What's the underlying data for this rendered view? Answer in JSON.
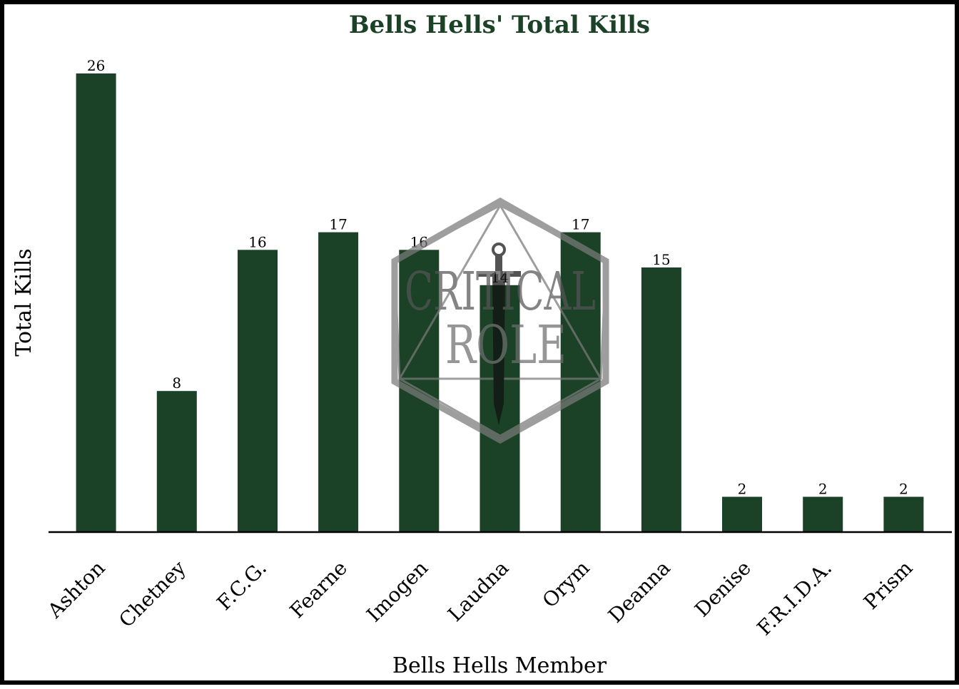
{
  "chart_data": {
    "type": "bar",
    "title": "Bells Hells' Total Kills",
    "xlabel": "Bells Hells Member",
    "ylabel": "Total Kills",
    "categories": [
      "Ashton",
      "Chetney",
      "F.C.G.",
      "Fearne",
      "Imogen",
      "Laudna",
      "Orym",
      "Deanna",
      "Denise",
      "F.R.I.D.A.",
      "Prism"
    ],
    "values": [
      26,
      8,
      16,
      17,
      16,
      14,
      17,
      15,
      2,
      2,
      2
    ],
    "ylim": [
      0,
      26
    ],
    "grid": false,
    "data_labels": true,
    "legend": "none",
    "colors": {
      "bar": "#1b4226",
      "title": "#1b4226",
      "text": "#000000",
      "watermark": "#7a7a7a"
    },
    "watermark": {
      "line1": "CRITICAL",
      "line2": "ROLE",
      "icon": "d20-sword-icon"
    }
  }
}
